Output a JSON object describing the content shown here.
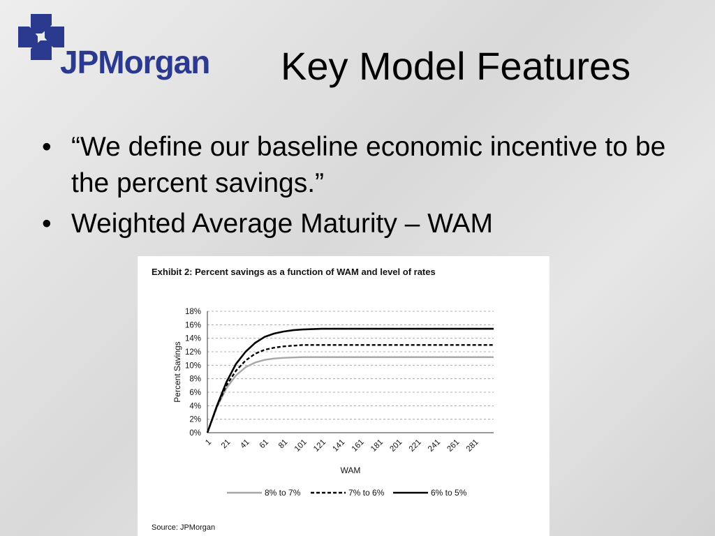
{
  "logo": {
    "text": "JPMorgan"
  },
  "title": "Key Model Features",
  "bullets": [
    "“We define our baseline economic incentive to be the percent savings.”",
    "Weighted Average Maturity – WAM"
  ],
  "exhibit": {
    "title": "Exhibit 2:  Percent savings as a function of WAM and level of rates",
    "source": "Source: JPMorgan"
  },
  "chart_data": {
    "type": "line",
    "xlabel": "WAM",
    "ylabel": "Percent Savings",
    "ylim": [
      0,
      18
    ],
    "xlim": [
      1,
      301
    ],
    "x_ticks": [
      "1",
      "21",
      "41",
      "61",
      "81",
      "101",
      "121",
      "141",
      "161",
      "181",
      "201",
      "221",
      "241",
      "261",
      "281"
    ],
    "y_ticks": [
      "0%",
      "2%",
      "4%",
      "6%",
      "8%",
      "10%",
      "12%",
      "14%",
      "16%",
      "18%"
    ],
    "grid": "horizontal dashed",
    "legend_position": "bottom",
    "x": [
      1,
      11,
      21,
      31,
      41,
      51,
      61,
      71,
      81,
      91,
      101,
      121,
      141,
      161,
      181,
      201,
      221,
      241,
      261,
      281,
      301
    ],
    "series": [
      {
        "name": "8% to 7%",
        "style": "gray",
        "color": "#a6a6a6",
        "values": [
          0,
          3.8,
          6.6,
          8.5,
          9.7,
          10.4,
          10.8,
          11.0,
          11.1,
          11.15,
          11.2,
          11.2,
          11.2,
          11.2,
          11.2,
          11.2,
          11.2,
          11.2,
          11.2,
          11.2,
          11.2
        ]
      },
      {
        "name": "7% to 6%",
        "style": "dashed",
        "color": "#000000",
        "values": [
          0,
          3.9,
          7.0,
          9.2,
          10.7,
          11.7,
          12.3,
          12.6,
          12.8,
          12.9,
          13.0,
          13.0,
          13.0,
          13.0,
          13.0,
          13.0,
          13.0,
          13.0,
          13.0,
          13.0,
          13.0
        ]
      },
      {
        "name": "6% to 5%",
        "style": "solid",
        "color": "#000000",
        "values": [
          0,
          4.0,
          7.5,
          10.2,
          12.0,
          13.3,
          14.2,
          14.7,
          15.0,
          15.2,
          15.3,
          15.4,
          15.4,
          15.4,
          15.4,
          15.4,
          15.4,
          15.4,
          15.4,
          15.4,
          15.4
        ]
      }
    ]
  }
}
